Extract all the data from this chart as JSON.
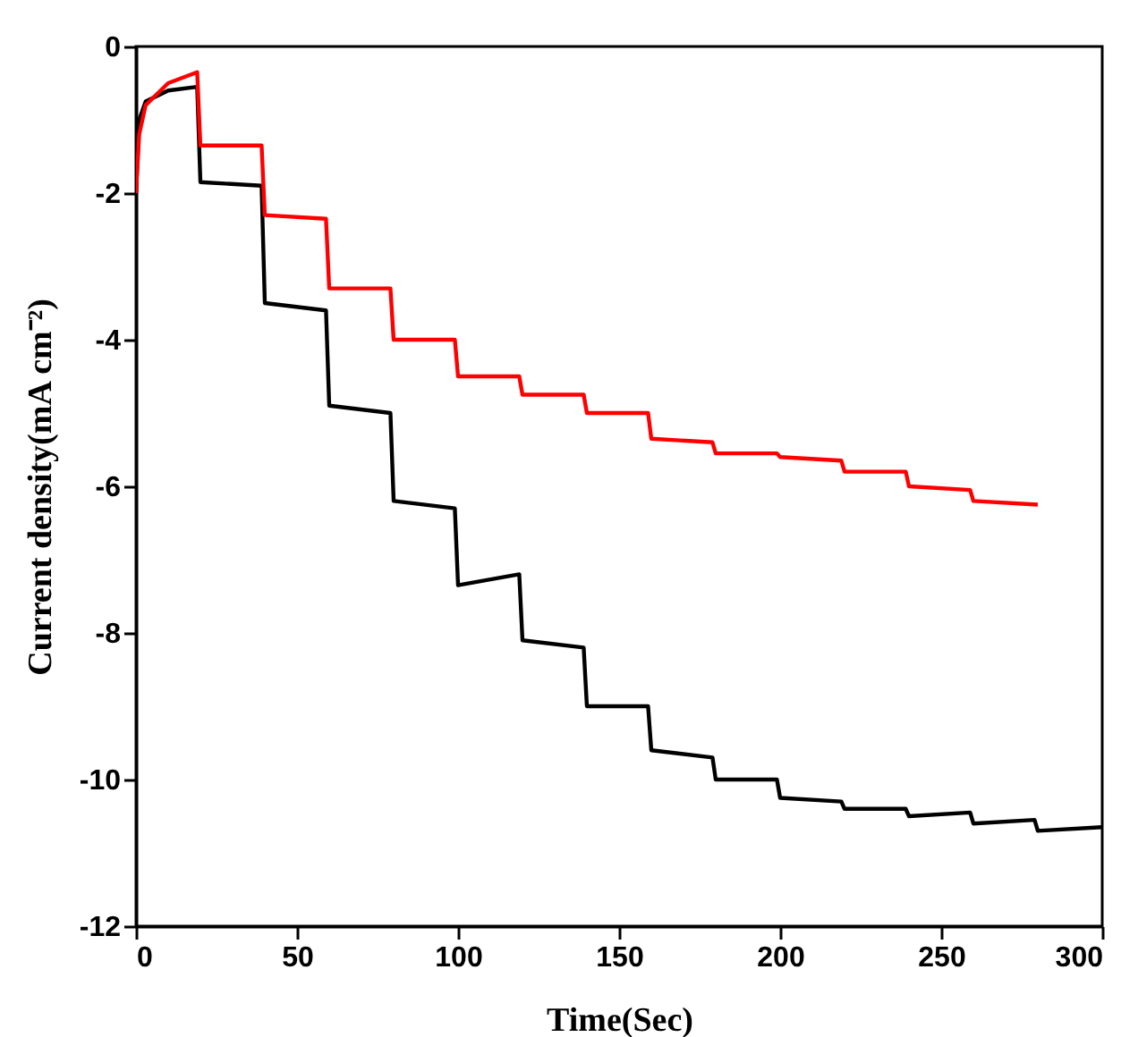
{
  "chart_data": {
    "type": "line",
    "xlabel": "Time(Sec)",
    "ylabel": "Current density(mA cm⁻²)",
    "xlim": [
      0,
      300
    ],
    "ylim": [
      -12,
      0
    ],
    "xticks": [
      0,
      50,
      100,
      150,
      200,
      250,
      300
    ],
    "yticks": [
      -12,
      -10,
      -8,
      -6,
      -4,
      -2,
      0
    ],
    "line_style": "solid",
    "series": [
      {
        "color": "#000000",
        "x": [
          0,
          1,
          3,
          10,
          19,
          20,
          39,
          40,
          59,
          60,
          79,
          80,
          99,
          100,
          119,
          120,
          139,
          140,
          159,
          160,
          179,
          180,
          199,
          200,
          219,
          220,
          239,
          240,
          259,
          260,
          279,
          280,
          300
        ],
        "values": [
          -2,
          -1.0,
          -0.75,
          -0.6,
          -0.55,
          -1.85,
          -1.9,
          -3.5,
          -3.6,
          -4.9,
          -5.0,
          -6.2,
          -6.3,
          -7.35,
          -7.2,
          -8.1,
          -8.2,
          -9.0,
          -9.0,
          -9.6,
          -9.7,
          -10.0,
          -10.0,
          -10.25,
          -10.3,
          -10.4,
          -10.4,
          -10.5,
          -10.45,
          -10.6,
          -10.55,
          -10.7,
          -10.65
        ]
      },
      {
        "color": "#ff0000",
        "x": [
          0,
          1,
          3,
          10,
          19,
          20,
          39,
          40,
          59,
          60,
          79,
          80,
          99,
          100,
          119,
          120,
          139,
          140,
          159,
          160,
          179,
          180,
          199,
          200,
          219,
          220,
          239,
          240,
          259,
          260,
          280
        ],
        "values": [
          -2,
          -1.2,
          -0.8,
          -0.5,
          -0.35,
          -1.35,
          -1.35,
          -2.3,
          -2.35,
          -3.3,
          -3.3,
          -4.0,
          -4.0,
          -4.5,
          -4.5,
          -4.75,
          -4.75,
          -5.0,
          -5.0,
          -5.35,
          -5.4,
          -5.55,
          -5.55,
          -5.6,
          -5.65,
          -5.8,
          -5.8,
          -6.0,
          -6.05,
          -6.2,
          -6.25
        ]
      }
    ]
  }
}
